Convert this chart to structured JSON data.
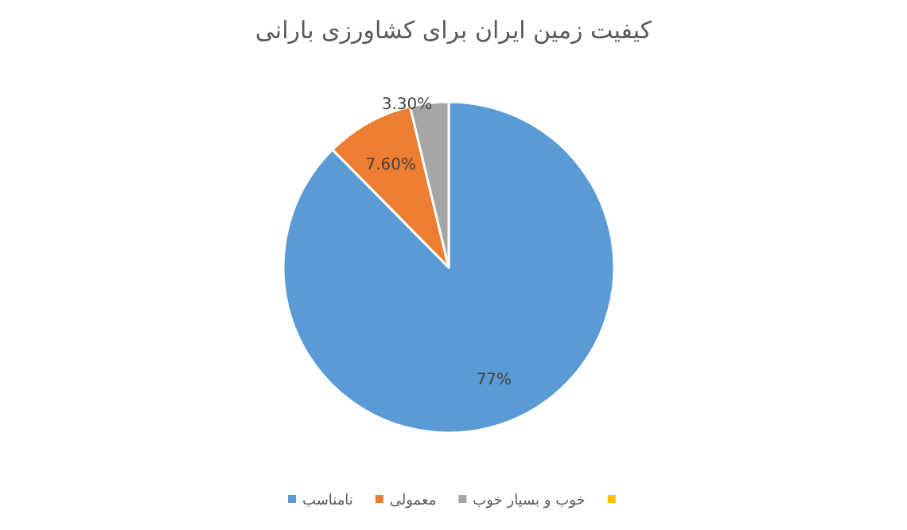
{
  "chart_data": {
    "type": "pie",
    "title": "کیفیت زمین ایران برای کشاورزی بارانی",
    "categories": [
      "نامناسب",
      "معمولی",
      "خوب و بسیار خوب",
      null
    ],
    "values": [
      77,
      7.6,
      3.3,
      null
    ],
    "value_labels": [
      "77%",
      "7.60%",
      "3.30%",
      null
    ],
    "colors": [
      "#5b9bd5",
      "#ed7d31",
      "#a5a5a5",
      "#ffc000"
    ],
    "legend": "bottom"
  }
}
